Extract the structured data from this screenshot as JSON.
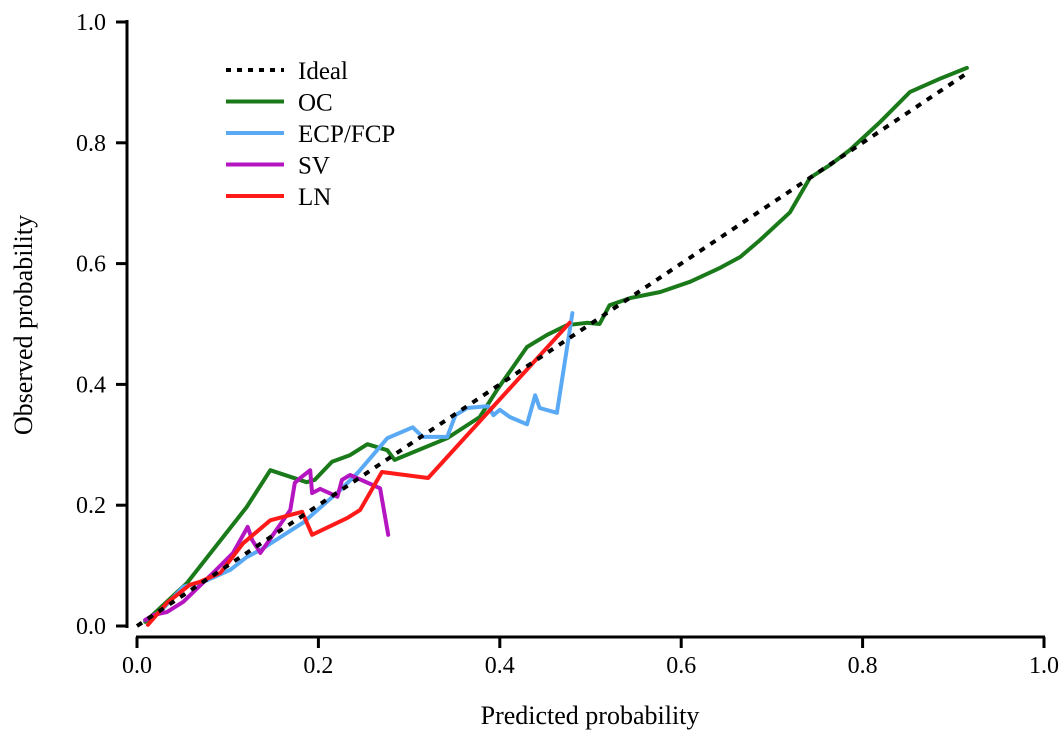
{
  "chart_data": {
    "type": "line",
    "title": "",
    "xlabel": "Predicted probability",
    "ylabel": "Observed probability",
    "xlim": [
      0,
      1
    ],
    "ylim": [
      0,
      1
    ],
    "xticks": [
      "0.0",
      "0.2",
      "0.4",
      "0.6",
      "0.8",
      "1.0"
    ],
    "yticks": [
      "0.0",
      "0.2",
      "0.4",
      "0.6",
      "0.8",
      "1.0"
    ],
    "grid": false,
    "legend_position": "top-left",
    "series": [
      {
        "name": "Ideal",
        "color": "#000000",
        "style": "dotted",
        "x": [
          0,
          0.915
        ],
        "y": [
          0,
          0.915
        ]
      },
      {
        "name": "OC",
        "color": "#1a7a1a",
        "style": "solid",
        "x": [
          0.009,
          0.055,
          0.121,
          0.147,
          0.187,
          0.196,
          0.215,
          0.235,
          0.254,
          0.276,
          0.284,
          0.342,
          0.378,
          0.397,
          0.43,
          0.452,
          0.474,
          0.496,
          0.51,
          0.521,
          0.544,
          0.577,
          0.61,
          0.643,
          0.665,
          0.687,
          0.72,
          0.742,
          0.764,
          0.786,
          0.819,
          0.852,
          0.885,
          0.915
        ],
        "y": [
          0.007,
          0.071,
          0.197,
          0.258,
          0.238,
          0.242,
          0.272,
          0.283,
          0.301,
          0.291,
          0.275,
          0.311,
          0.346,
          0.391,
          0.462,
          0.482,
          0.498,
          0.502,
          0.5,
          0.531,
          0.543,
          0.553,
          0.57,
          0.593,
          0.611,
          0.639,
          0.685,
          0.742,
          0.763,
          0.788,
          0.834,
          0.884,
          0.906,
          0.924
        ]
      },
      {
        "name": "ECP/FCP",
        "color": "#5aa9f5",
        "style": "solid",
        "x": [
          0.009,
          0.025,
          0.051,
          0.073,
          0.103,
          0.121,
          0.136,
          0.183,
          0.224,
          0.243,
          0.276,
          0.304,
          0.315,
          0.342,
          0.351,
          0.364,
          0.387,
          0.393,
          0.4,
          0.411,
          0.43,
          0.439,
          0.444,
          0.463,
          0.48
        ],
        "y": [
          0.01,
          0.023,
          0.065,
          0.073,
          0.093,
          0.114,
          0.126,
          0.171,
          0.225,
          0.253,
          0.311,
          0.329,
          0.313,
          0.313,
          0.349,
          0.361,
          0.364,
          0.349,
          0.358,
          0.346,
          0.334,
          0.382,
          0.361,
          0.353,
          0.518
        ]
      },
      {
        "name": "SV",
        "color": "#b515c0",
        "style": "solid",
        "x": [
          0.009,
          0.018,
          0.033,
          0.051,
          0.084,
          0.106,
          0.122,
          0.127,
          0.136,
          0.15,
          0.169,
          0.174,
          0.18,
          0.191,
          0.193,
          0.202,
          0.221,
          0.226,
          0.235,
          0.268,
          0.277
        ],
        "y": [
          0.01,
          0.018,
          0.023,
          0.04,
          0.088,
          0.121,
          0.164,
          0.142,
          0.121,
          0.151,
          0.192,
          0.237,
          0.245,
          0.258,
          0.22,
          0.227,
          0.214,
          0.242,
          0.25,
          0.228,
          0.151
        ]
      },
      {
        "name": "LN",
        "color": "#ff1a1a",
        "style": "solid",
        "x": [
          0.012,
          0.033,
          0.058,
          0.069,
          0.092,
          0.117,
          0.147,
          0.182,
          0.193,
          0.232,
          0.246,
          0.27,
          0.321,
          0.477
        ],
        "y": [
          0.002,
          0.038,
          0.068,
          0.073,
          0.088,
          0.137,
          0.175,
          0.189,
          0.151,
          0.179,
          0.192,
          0.255,
          0.245,
          0.502
        ]
      }
    ]
  }
}
